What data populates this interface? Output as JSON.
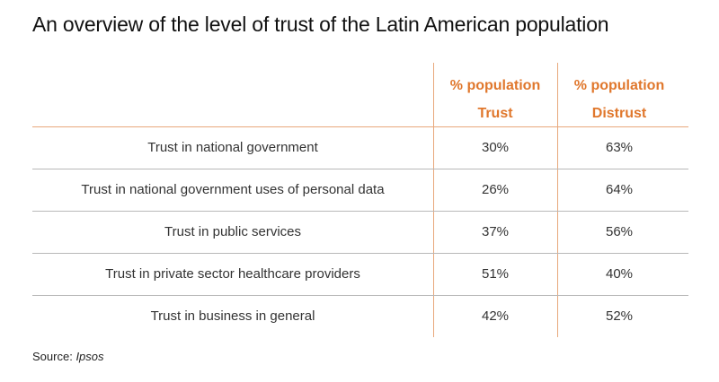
{
  "title": "An overview of the level of trust of the Latin American population",
  "source": {
    "prefix": "Source:",
    "name": "Ipsos"
  },
  "chart_data": {
    "type": "table",
    "title": "An overview of the level of trust of the Latin American population",
    "columns": [
      {
        "line1": "% population",
        "line2": "Trust"
      },
      {
        "line1": "% population",
        "line2": "Distrust"
      }
    ],
    "rows": [
      {
        "label": "Trust in national government",
        "trust": "30%",
        "distrust": "63%"
      },
      {
        "label": "Trust in national government uses of personal data",
        "trust": "26%",
        "distrust": "64%"
      },
      {
        "label": "Trust in public services",
        "trust": "37%",
        "distrust": "56%"
      },
      {
        "label": "Trust in private sector healthcare providers",
        "trust": "51%",
        "distrust": "40%"
      },
      {
        "label": "Trust in business in general",
        "trust": "42%",
        "distrust": "52%"
      }
    ],
    "values": {
      "trust": [
        30,
        26,
        37,
        51,
        42
      ],
      "distrust": [
        63,
        64,
        56,
        40,
        52
      ]
    },
    "colors": {
      "header": "#e0772c",
      "column_rule": "#e8a87c",
      "row_rule": "#b8b8b8"
    }
  }
}
